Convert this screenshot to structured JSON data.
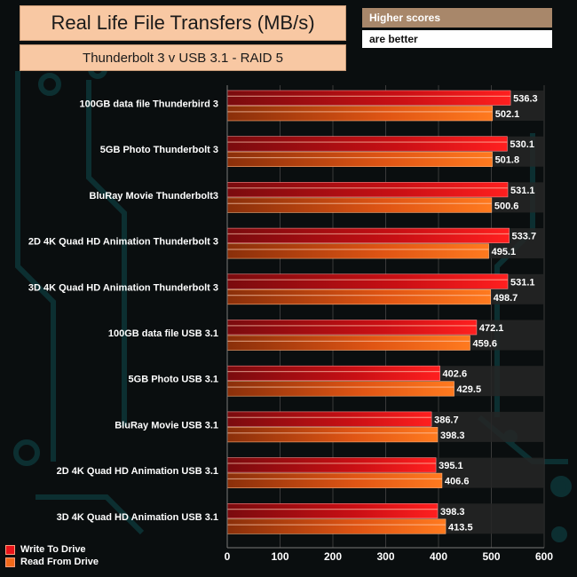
{
  "title_box": {
    "text": "Real Life File Transfers (MB/s)"
  },
  "subtitle_box": {
    "text": "Thunderbolt 3 v USB 3.1 - RAID 5"
  },
  "notes": {
    "line1": "Higher scores",
    "line2": "are better"
  },
  "colors": {
    "write": "#e8141a",
    "read": "#f26a1b",
    "bar_track": "#2a2a2a",
    "label": "#ffffff"
  },
  "chart_data": {
    "type": "bar",
    "orientation": "horizontal",
    "categories": [
      "100GB data file Thunderbird 3",
      "5GB Photo Thunderbolt 3",
      "BluRay Movie Thunderbolt3",
      "2D 4K Quad HD Animation Thunderbolt 3",
      "3D 4K Quad HD Animation Thunderbolt 3",
      "100GB data file USB 3.1",
      "5GB Photo  USB 3.1",
      "BluRay Movie USB 3.1",
      "2D 4K Quad HD Animation USB 3.1",
      "3D 4K Quad HD Animation USB 3.1"
    ],
    "series": [
      {
        "name": "Write To  Drive",
        "values": [
          536.3,
          530.1,
          531.1,
          533.7,
          531.1,
          472.1,
          402.6,
          386.7,
          395.1,
          398.3
        ]
      },
      {
        "name": "Read From  Drive",
        "values": [
          502.1,
          501.8,
          500.6,
          495.1,
          498.7,
          459.6,
          429.5,
          398.3,
          406.6,
          413.5
        ]
      }
    ],
    "xlim": [
      0,
      600
    ],
    "xticks": [
      0,
      100,
      200,
      300,
      400,
      500,
      600
    ],
    "grid": true,
    "legend": "bottom-left"
  }
}
